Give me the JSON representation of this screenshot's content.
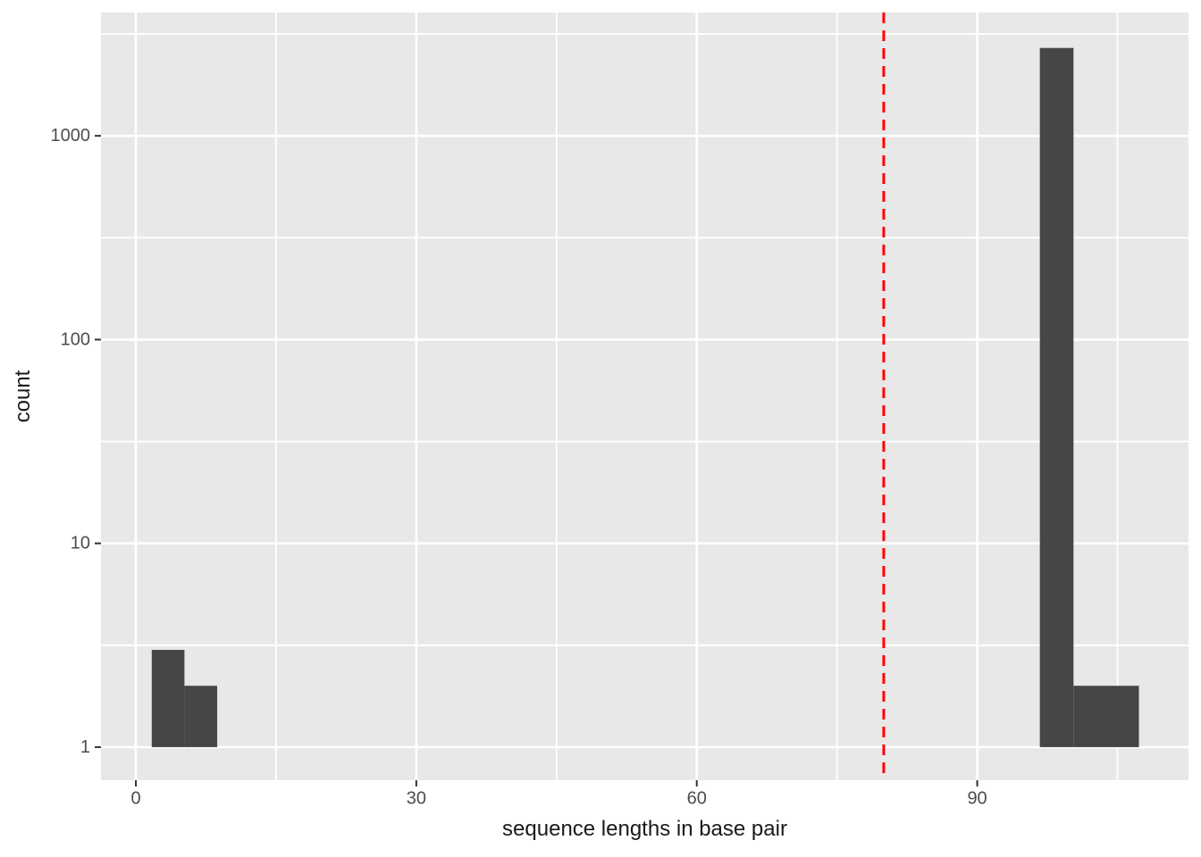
{
  "chart_data": {
    "type": "bar",
    "subtype": "histogram",
    "title": "",
    "xlabel": "sequence lengths in base pair",
    "ylabel": "count",
    "x_domain": [
      -3.73,
      112.6
    ],
    "y_domain": [
      0.688,
      4030
    ],
    "y_scale": "log10",
    "grid": true,
    "legend": null,
    "x_ticks": [
      {
        "value": 0,
        "label": "0"
      },
      {
        "value": 30,
        "label": "30"
      },
      {
        "value": 60,
        "label": "60"
      },
      {
        "value": 90,
        "label": "90"
      }
    ],
    "x_minor_breaks": [
      15,
      45,
      75,
      105
    ],
    "y_ticks": [
      {
        "value": 1,
        "label": "1"
      },
      {
        "value": 10,
        "label": "10"
      },
      {
        "value": 100,
        "label": "100"
      },
      {
        "value": 1000,
        "label": "1000"
      }
    ],
    "y_minor_breaks": [
      3.162,
      31.62,
      316.2,
      3162
    ],
    "bins": [
      {
        "x0": 1.7,
        "x1": 5.2,
        "count": 3
      },
      {
        "x0": 5.2,
        "x1": 8.7,
        "count": 2
      },
      {
        "x0": 96.7,
        "x1": 100.3,
        "count": 2700
      },
      {
        "x0": 100.3,
        "x1": 107.3,
        "count": 2
      }
    ],
    "vline": {
      "x": 80,
      "style": "dashed",
      "color": "#FF0000"
    },
    "colors": {
      "panel_bg": "#E8E8E8",
      "grid_major": "#FFFFFF",
      "grid_minor": "#FFFFFF",
      "bar_fill": "#464646",
      "tick_mark": "#333333",
      "tick_label": "#4D4D4D",
      "axis_title": "#1A1A1A"
    }
  }
}
